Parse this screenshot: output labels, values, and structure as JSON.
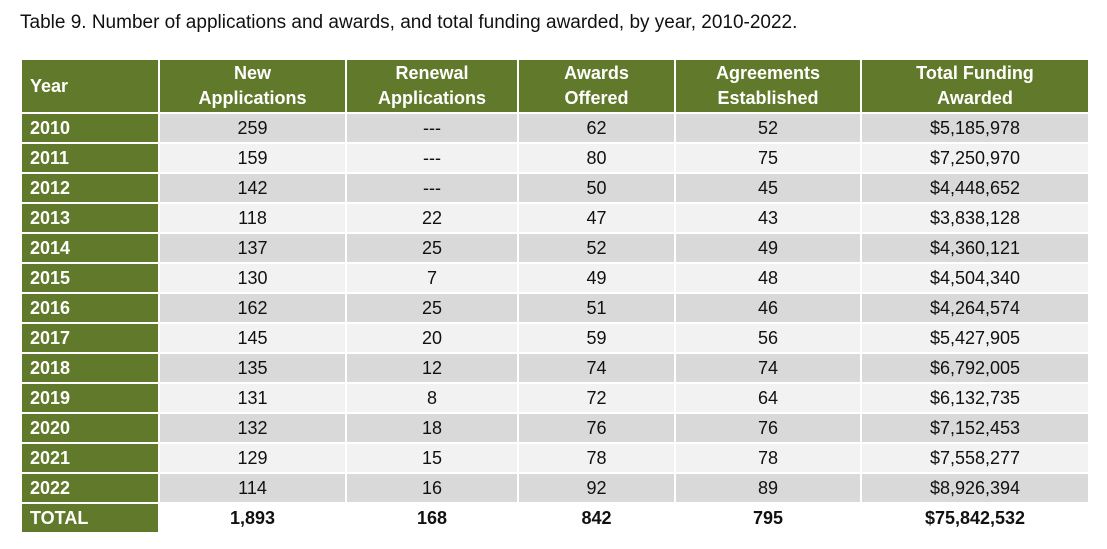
{
  "caption": "Table 9.  Number of applications and awards, and total funding awarded, by year, 2010-2022.",
  "headers": {
    "year": "Year",
    "new_apps": [
      "New",
      "Applications"
    ],
    "renewal_apps": [
      "Renewal",
      "Applications"
    ],
    "awards": [
      "Awards",
      "Offered"
    ],
    "agreements": [
      "Agreements",
      "Established"
    ],
    "funding": [
      "Total Funding",
      "Awarded"
    ]
  },
  "rows": [
    {
      "year": "2010",
      "new_apps": "259",
      "renewal_apps": "---",
      "awards": "62",
      "agreements": "52",
      "funding": "$5,185,978"
    },
    {
      "year": "2011",
      "new_apps": "159",
      "renewal_apps": "---",
      "awards": "80",
      "agreements": "75",
      "funding": "$7,250,970"
    },
    {
      "year": "2012",
      "new_apps": "142",
      "renewal_apps": "---",
      "awards": "50",
      "agreements": "45",
      "funding": "$4,448,652"
    },
    {
      "year": "2013",
      "new_apps": "118",
      "renewal_apps": "22",
      "awards": "47",
      "agreements": "43",
      "funding": "$3,838,128"
    },
    {
      "year": "2014",
      "new_apps": "137",
      "renewal_apps": "25",
      "awards": "52",
      "agreements": "49",
      "funding": "$4,360,121"
    },
    {
      "year": "2015",
      "new_apps": "130",
      "renewal_apps": "7",
      "awards": "49",
      "agreements": "48",
      "funding": "$4,504,340"
    },
    {
      "year": "2016",
      "new_apps": "162",
      "renewal_apps": "25",
      "awards": "51",
      "agreements": "46",
      "funding": "$4,264,574"
    },
    {
      "year": "2017",
      "new_apps": "145",
      "renewal_apps": "20",
      "awards": "59",
      "agreements": "56",
      "funding": "$5,427,905"
    },
    {
      "year": "2018",
      "new_apps": "135",
      "renewal_apps": "12",
      "awards": "74",
      "agreements": "74",
      "funding": "$6,792,005"
    },
    {
      "year": "2019",
      "new_apps": "131",
      "renewal_apps": "8",
      "awards": "72",
      "agreements": "64",
      "funding": "$6,132,735"
    },
    {
      "year": "2020",
      "new_apps": "132",
      "renewal_apps": "18",
      "awards": "76",
      "agreements": "76",
      "funding": "$7,152,453"
    },
    {
      "year": "2021",
      "new_apps": "129",
      "renewal_apps": "15",
      "awards": "78",
      "agreements": "78",
      "funding": "$7,558,277"
    },
    {
      "year": "2022",
      "new_apps": "114",
      "renewal_apps": "16",
      "awards": "92",
      "agreements": "89",
      "funding": "$8,926,394"
    }
  ],
  "total": {
    "year": "TOTAL",
    "new_apps": "1,893",
    "renewal_apps": "168",
    "awards": "842",
    "agreements": "795",
    "funding": "$75,842,532"
  },
  "colors": {
    "header_green": "#61792b",
    "row_shade": "#d9d9d9",
    "row_plain": "#f2f2f2"
  }
}
